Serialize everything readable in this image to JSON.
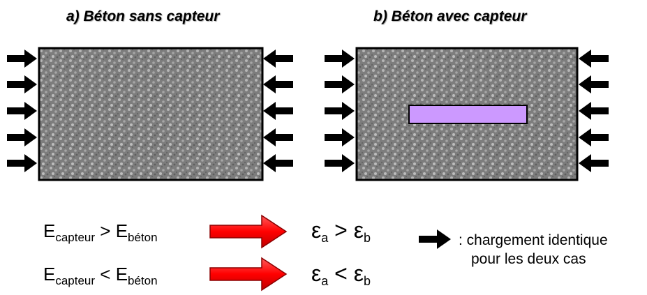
{
  "panel_a": {
    "title": "a) Béton sans capteur"
  },
  "panel_b": {
    "title": "b) Béton avec capteur"
  },
  "relations": [
    {
      "e_base": "E",
      "e_sub1": "capteur",
      "e_op": ">",
      "e_sub2": "béton",
      "eps": "ε",
      "eps_sub1": "a",
      "eps_op": ">",
      "eps_sub2": "b"
    },
    {
      "e_base": "E",
      "e_sub1": "capteur",
      "e_op": "<",
      "e_sub2": "béton",
      "eps": "ε",
      "eps_sub1": "a",
      "eps_op": "<",
      "eps_sub2": "b"
    }
  ],
  "legend": {
    "line1": ": chargement identique",
    "line2": "pour les deux cas"
  },
  "colors": {
    "concrete": "#8a8a8a",
    "sensor": "#cc99ff",
    "implication_arrow": "#ff0000",
    "load_arrow": "#000000"
  },
  "icons": {
    "load": "black-arrow-icon",
    "implication": "red-arrow-icon"
  }
}
